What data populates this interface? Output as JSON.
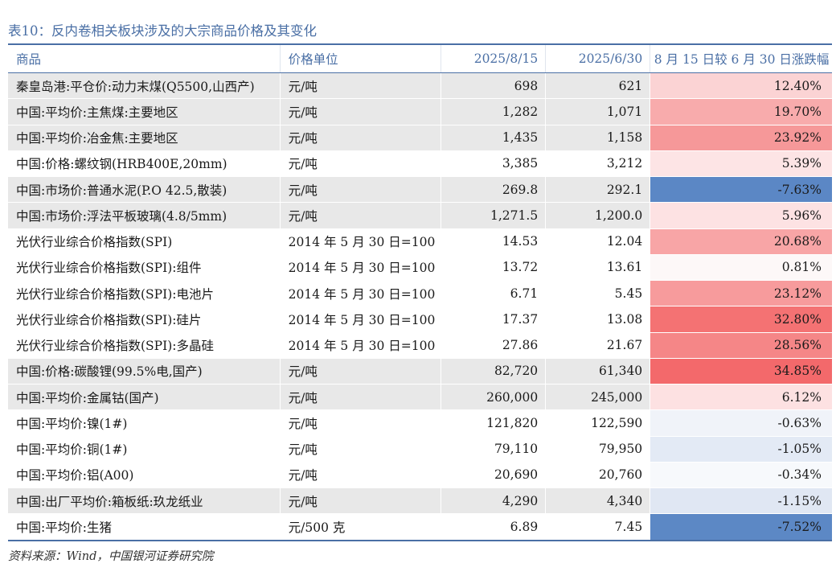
{
  "title": "表10：反内卷相关板块涉及的大宗商品价格及其变化",
  "columns": [
    "商品",
    "价格单位",
    "2025/8/15",
    "2025/6/30",
    "8 月 15 日较 6 月 30 日涨跌幅"
  ],
  "rows": [
    {
      "name": "秦皇岛港:平仓价:动力末煤(Q5500,山西产)",
      "unit": "元/吨",
      "v1": "698",
      "v2": "621",
      "chg": "12.40%",
      "bg": "#e8e8e8",
      "chg_bg": "#fbd3d4"
    },
    {
      "name": "中国:平均价:主焦煤:主要地区",
      "unit": "元/吨",
      "v1": "1,282",
      "v2": "1,071",
      "chg": "19.70%",
      "bg": "#e8e8e8",
      "chg_bg": "#f8abac"
    },
    {
      "name": "中国:平均价:冶金焦:主要地区",
      "unit": "元/吨",
      "v1": "1,435",
      "v2": "1,158",
      "chg": "23.92%",
      "bg": "#e8e8e8",
      "chg_bg": "#f69899"
    },
    {
      "name": "中国:价格:螺纹钢(HRB400E,20mm)",
      "unit": "元/吨",
      "v1": "3,385",
      "v2": "3,212",
      "chg": "5.39%",
      "bg": "#ffffff",
      "chg_bg": "#fde4e5"
    },
    {
      "name": "中国:市场价:普通水泥(P.O 42.5,散装)",
      "unit": "元/吨",
      "v1": "269.8",
      "v2": "292.1",
      "chg": "-7.63%",
      "bg": "#e8e8e8",
      "chg_bg": "#5b87c5"
    },
    {
      "name": "中国:市场价:浮法平板玻璃(4.8/5mm)",
      "unit": "元/吨",
      "v1": "1,271.5",
      "v2": "1,200.0",
      "chg": "5.96%",
      "bg": "#e8e8e8",
      "chg_bg": "#fde2e3"
    },
    {
      "name": "光伏行业综合价格指数(SPI)",
      "unit": "2014 年 5 月 30 日=100",
      "v1": "14.53",
      "v2": "12.04",
      "chg": "20.68%",
      "bg": "#ffffff",
      "chg_bg": "#f8a5a6"
    },
    {
      "name": "光伏行业综合价格指数(SPI):组件",
      "unit": "2014 年 5 月 30 日=100",
      "v1": "13.72",
      "v2": "13.61",
      "chg": "0.81%",
      "bg": "#ffffff",
      "chg_bg": "#fdf8f8"
    },
    {
      "name": "光伏行业综合价格指数(SPI):电池片",
      "unit": "2014 年 5 月 30 日=100",
      "v1": "6.71",
      "v2": "5.45",
      "chg": "23.12%",
      "bg": "#ffffff",
      "chg_bg": "#f79b9c"
    },
    {
      "name": "光伏行业综合价格指数(SPI):硅片",
      "unit": "2014 年 5 月 30 日=100",
      "v1": "17.37",
      "v2": "13.08",
      "chg": "32.80%",
      "bg": "#ffffff",
      "chg_bg": "#f47273"
    },
    {
      "name": "光伏行业综合价格指数(SPI):多晶硅",
      "unit": "2014 年 5 月 30 日=100",
      "v1": "27.86",
      "v2": "21.67",
      "chg": "28.56%",
      "bg": "#ffffff",
      "chg_bg": "#f58687"
    },
    {
      "name": "中国:价格:碳酸锂(99.5%电,国产)",
      "unit": "元/吨",
      "v1": "82,720",
      "v2": "61,340",
      "chg": "34.85%",
      "bg": "#e8e8e8",
      "chg_bg": "#f3696b"
    },
    {
      "name": "中国:平均价:金属钴(国产)",
      "unit": "元/吨",
      "v1": "260,000",
      "v2": "245,000",
      "chg": "6.12%",
      "bg": "#e8e8e8",
      "chg_bg": "#fde1e2"
    },
    {
      "name": "中国:平均价:镍(1#)",
      "unit": "元/吨",
      "v1": "121,820",
      "v2": "122,590",
      "chg": "-0.63%",
      "bg": "#ffffff",
      "chg_bg": "#f0f3f9"
    },
    {
      "name": "中国:平均价:铜(1#)",
      "unit": "元/吨",
      "v1": "79,110",
      "v2": "79,950",
      "chg": "-1.05%",
      "bg": "#ffffff",
      "chg_bg": "#e3eaf5"
    },
    {
      "name": "中国:平均价:铝(A00)",
      "unit": "元/吨",
      "v1": "20,690",
      "v2": "20,760",
      "chg": "-0.34%",
      "bg": "#ffffff",
      "chg_bg": "#f7f9fc"
    },
    {
      "name": "中国:出厂平均价:箱板纸:玖龙纸业",
      "unit": "元/吨",
      "v1": "4,290",
      "v2": "4,340",
      "chg": "-1.15%",
      "bg": "#e8e8e8",
      "chg_bg": "#e0e7f3"
    },
    {
      "name": "中国:平均价:生猪",
      "unit": "元/500 克",
      "v1": "6.89",
      "v2": "7.45",
      "chg": "-7.52%",
      "bg": "#ffffff",
      "chg_bg": "#5c88c5"
    }
  ],
  "source": "资料来源：Wind，中国银河证券研究院"
}
